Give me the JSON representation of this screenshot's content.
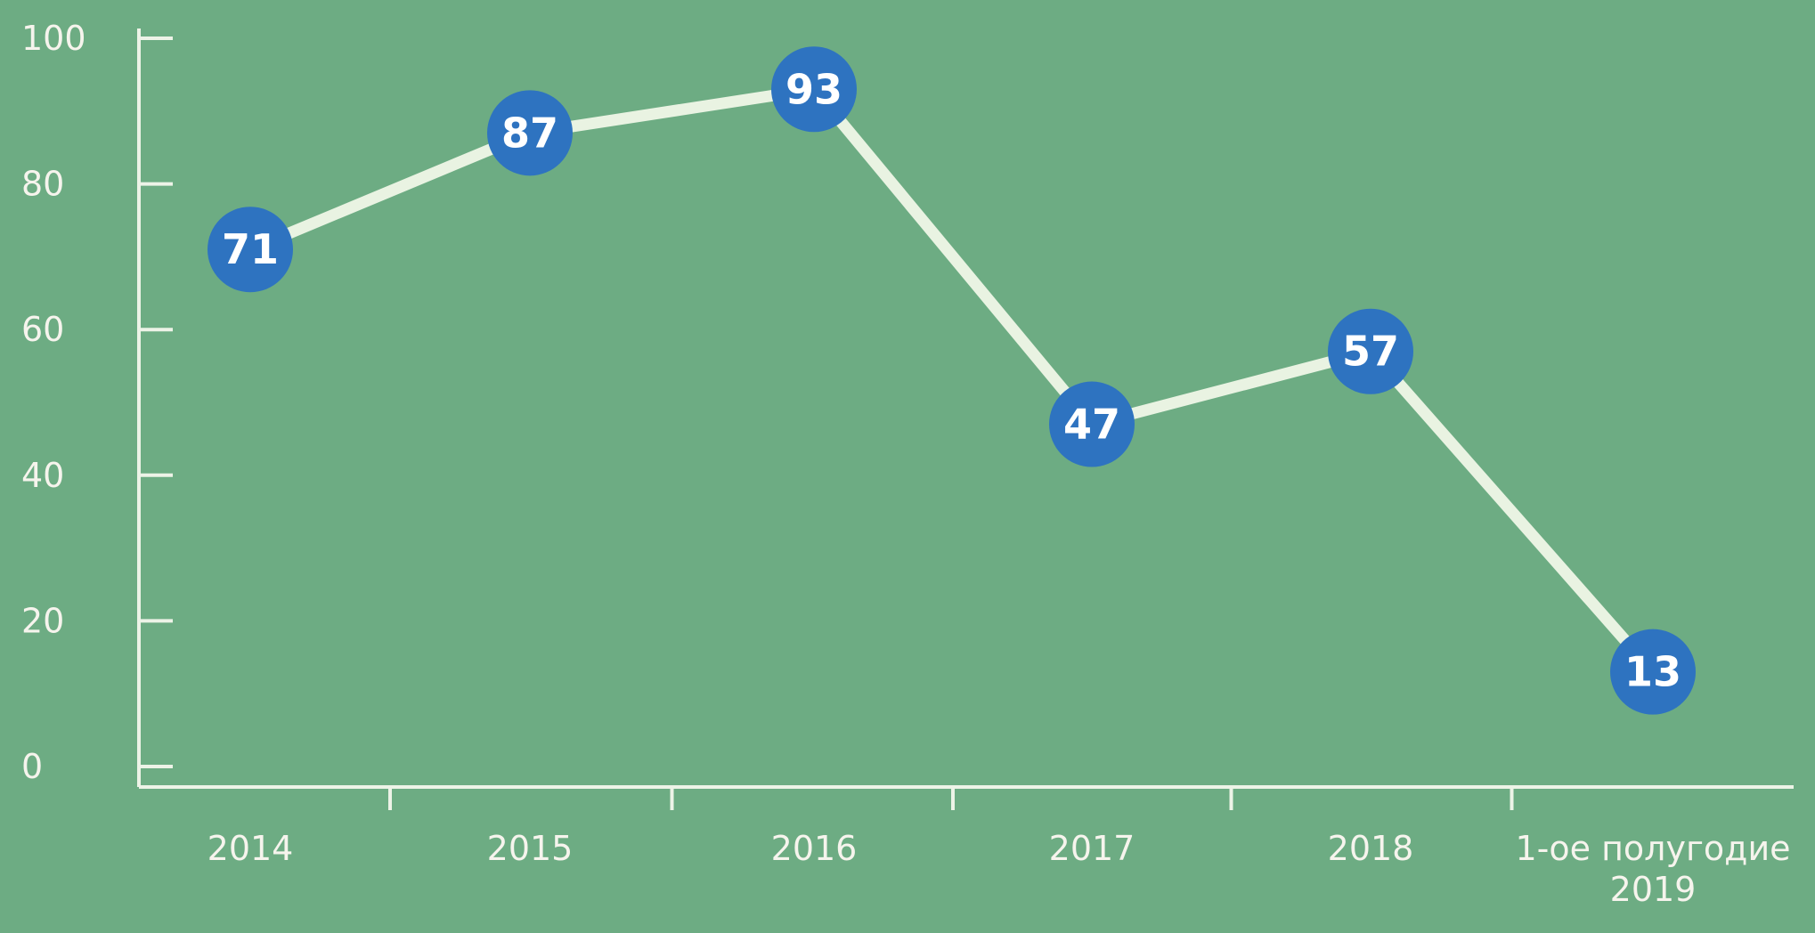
{
  "colors": {
    "background": "#6dac83",
    "line": "#e9f3e2",
    "axis": "#edf3e7",
    "tick_label": "#f6f4ed",
    "marker_fill": "#2e73c0",
    "marker_text": "#ffffff"
  },
  "chart_data": {
    "type": "line",
    "categories": [
      "2014",
      "2015",
      "2016",
      "2017",
      "2018",
      "1-ое полугодие\n2019"
    ],
    "values": [
      71,
      87,
      93,
      47,
      57,
      13
    ],
    "title": "",
    "xlabel": "",
    "ylabel": "",
    "ylim": [
      0,
      100
    ],
    "yticks": [
      0,
      20,
      40,
      60,
      80,
      100
    ],
    "grid": false,
    "legend": false,
    "data_labels": true,
    "marker": "circle"
  }
}
